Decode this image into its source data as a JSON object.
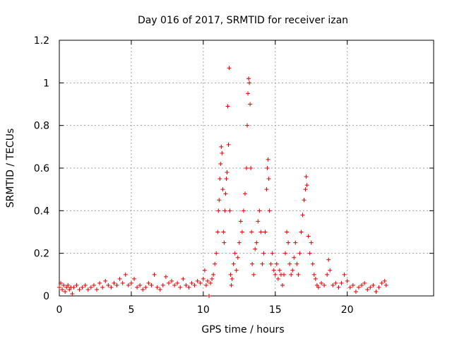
{
  "chart_data": {
    "type": "scatter",
    "title": "Day 016 of 2017, SRMTID for receiver izan",
    "xlabel": "GPS time / hours",
    "ylabel": "SRMTID / TECUs",
    "xlim": [
      0,
      26
    ],
    "ylim": [
      0,
      1.2
    ],
    "x_ticks": [
      0,
      5,
      10,
      15,
      20
    ],
    "y_ticks": [
      0,
      0.2,
      0.4,
      0.6,
      0.8,
      1,
      1.2
    ],
    "y_tick_labels": [
      "0",
      "0.2",
      "0.4",
      "0.6",
      "0.8",
      "1",
      "1.2"
    ],
    "grid": true,
    "marker": "+",
    "color": "#e00000",
    "series": [
      {
        "name": "SRMTID",
        "points": [
          [
            0.0,
            0.04
          ],
          [
            0.1,
            0.06
          ],
          [
            0.2,
            0.03
          ],
          [
            0.3,
            0.05
          ],
          [
            0.4,
            0.02
          ],
          [
            0.5,
            0.04
          ],
          [
            0.6,
            0.05
          ],
          [
            0.7,
            0.03
          ],
          [
            0.8,
            0.04
          ],
          [
            0.9,
            0.01
          ],
          [
            1.0,
            0.04
          ],
          [
            1.2,
            0.05
          ],
          [
            1.4,
            0.03
          ],
          [
            1.6,
            0.04
          ],
          [
            1.8,
            0.05
          ],
          [
            2.0,
            0.03
          ],
          [
            2.2,
            0.04
          ],
          [
            2.4,
            0.05
          ],
          [
            2.6,
            0.03
          ],
          [
            2.8,
            0.06
          ],
          [
            3.0,
            0.04
          ],
          [
            3.2,
            0.07
          ],
          [
            3.4,
            0.05
          ],
          [
            3.6,
            0.04
          ],
          [
            3.8,
            0.06
          ],
          [
            4.0,
            0.05
          ],
          [
            4.2,
            0.08
          ],
          [
            4.4,
            0.06
          ],
          [
            4.6,
            0.1
          ],
          [
            4.8,
            0.05
          ],
          [
            5.0,
            0.06
          ],
          [
            5.2,
            0.08
          ],
          [
            5.4,
            0.04
          ],
          [
            5.6,
            0.05
          ],
          [
            5.8,
            0.03
          ],
          [
            6.0,
            0.04
          ],
          [
            6.2,
            0.06
          ],
          [
            6.4,
            0.05
          ],
          [
            6.6,
            0.1
          ],
          [
            6.8,
            0.04
          ],
          [
            7.0,
            0.03
          ],
          [
            7.2,
            0.05
          ],
          [
            7.4,
            0.09
          ],
          [
            7.6,
            0.06
          ],
          [
            7.8,
            0.07
          ],
          [
            8.0,
            0.05
          ],
          [
            8.2,
            0.06
          ],
          [
            8.4,
            0.04
          ],
          [
            8.6,
            0.08
          ],
          [
            8.8,
            0.05
          ],
          [
            9.0,
            0.04
          ],
          [
            9.2,
            0.06
          ],
          [
            9.4,
            0.05
          ],
          [
            9.6,
            0.07
          ],
          [
            9.8,
            0.06
          ],
          [
            10.0,
            0.08
          ],
          [
            10.1,
            0.12
          ],
          [
            10.2,
            0.05
          ],
          [
            10.3,
            0.07
          ],
          [
            10.4,
            0.0
          ],
          [
            10.5,
            0.06
          ],
          [
            10.6,
            0.08
          ],
          [
            10.7,
            0.1
          ],
          [
            10.8,
            0.15
          ],
          [
            10.9,
            0.2
          ],
          [
            11.0,
            0.3
          ],
          [
            11.05,
            0.4
          ],
          [
            11.1,
            0.45
          ],
          [
            11.15,
            0.55
          ],
          [
            11.2,
            0.62
          ],
          [
            11.25,
            0.7
          ],
          [
            11.3,
            0.67
          ],
          [
            11.35,
            0.5
          ],
          [
            11.4,
            0.3
          ],
          [
            11.45,
            0.25
          ],
          [
            11.5,
            0.4
          ],
          [
            11.55,
            0.48
          ],
          [
            11.6,
            0.55
          ],
          [
            11.65,
            0.58
          ],
          [
            11.7,
            0.89
          ],
          [
            11.75,
            0.71
          ],
          [
            11.8,
            1.07
          ],
          [
            11.85,
            0.4
          ],
          [
            11.9,
            0.1
          ],
          [
            11.95,
            0.05
          ],
          [
            12.0,
            0.08
          ],
          [
            12.1,
            0.15
          ],
          [
            12.2,
            0.2
          ],
          [
            12.3,
            0.12
          ],
          [
            12.4,
            0.18
          ],
          [
            12.5,
            0.25
          ],
          [
            12.6,
            0.35
          ],
          [
            12.7,
            0.3
          ],
          [
            12.8,
            0.4
          ],
          [
            12.9,
            0.48
          ],
          [
            13.0,
            0.6
          ],
          [
            13.05,
            0.8
          ],
          [
            13.1,
            0.95
          ],
          [
            13.15,
            1.02
          ],
          [
            13.2,
            1.0
          ],
          [
            13.25,
            0.9
          ],
          [
            13.3,
            0.6
          ],
          [
            13.35,
            0.3
          ],
          [
            13.4,
            0.15
          ],
          [
            13.5,
            0.1
          ],
          [
            13.6,
            0.22
          ],
          [
            13.7,
            0.25
          ],
          [
            13.8,
            0.35
          ],
          [
            13.9,
            0.4
          ],
          [
            14.0,
            0.3
          ],
          [
            14.1,
            0.15
          ],
          [
            14.2,
            0.2
          ],
          [
            14.3,
            0.3
          ],
          [
            14.4,
            0.5
          ],
          [
            14.45,
            0.6
          ],
          [
            14.5,
            0.64
          ],
          [
            14.55,
            0.55
          ],
          [
            14.6,
            0.4
          ],
          [
            14.7,
            0.15
          ],
          [
            14.8,
            0.2
          ],
          [
            14.9,
            0.12
          ],
          [
            15.0,
            0.1
          ],
          [
            15.1,
            0.15
          ],
          [
            15.2,
            0.08
          ],
          [
            15.3,
            0.12
          ],
          [
            15.4,
            0.1
          ],
          [
            15.5,
            0.05
          ],
          [
            15.6,
            0.1
          ],
          [
            15.7,
            0.2
          ],
          [
            15.8,
            0.3
          ],
          [
            15.9,
            0.25
          ],
          [
            16.0,
            0.15
          ],
          [
            16.1,
            0.1
          ],
          [
            16.2,
            0.12
          ],
          [
            16.3,
            0.18
          ],
          [
            16.4,
            0.25
          ],
          [
            16.5,
            0.15
          ],
          [
            16.6,
            0.1
          ],
          [
            16.7,
            0.2
          ],
          [
            16.8,
            0.3
          ],
          [
            16.9,
            0.38
          ],
          [
            17.0,
            0.45
          ],
          [
            17.1,
            0.5
          ],
          [
            17.15,
            0.56
          ],
          [
            17.2,
            0.52
          ],
          [
            17.3,
            0.28
          ],
          [
            17.4,
            0.2
          ],
          [
            17.5,
            0.25
          ],
          [
            17.6,
            0.15
          ],
          [
            17.7,
            0.1
          ],
          [
            17.8,
            0.08
          ],
          [
            17.9,
            0.05
          ],
          [
            18.0,
            0.04
          ],
          [
            18.2,
            0.06
          ],
          [
            18.4,
            0.05
          ],
          [
            18.6,
            0.1
          ],
          [
            18.7,
            0.17
          ],
          [
            18.8,
            0.12
          ],
          [
            19.0,
            0.05
          ],
          [
            19.2,
            0.06
          ],
          [
            19.4,
            0.04
          ],
          [
            19.6,
            0.06
          ],
          [
            19.8,
            0.1
          ],
          [
            20.0,
            0.07
          ],
          [
            20.2,
            0.04
          ],
          [
            20.4,
            0.05
          ],
          [
            20.6,
            0.02
          ],
          [
            20.8,
            0.04
          ],
          [
            21.0,
            0.05
          ],
          [
            21.2,
            0.06
          ],
          [
            21.4,
            0.03
          ],
          [
            21.6,
            0.04
          ],
          [
            21.8,
            0.05
          ],
          [
            22.0,
            0.02
          ],
          [
            22.2,
            0.04
          ],
          [
            22.4,
            0.06
          ],
          [
            22.6,
            0.07
          ],
          [
            22.7,
            0.05
          ]
        ]
      }
    ]
  }
}
